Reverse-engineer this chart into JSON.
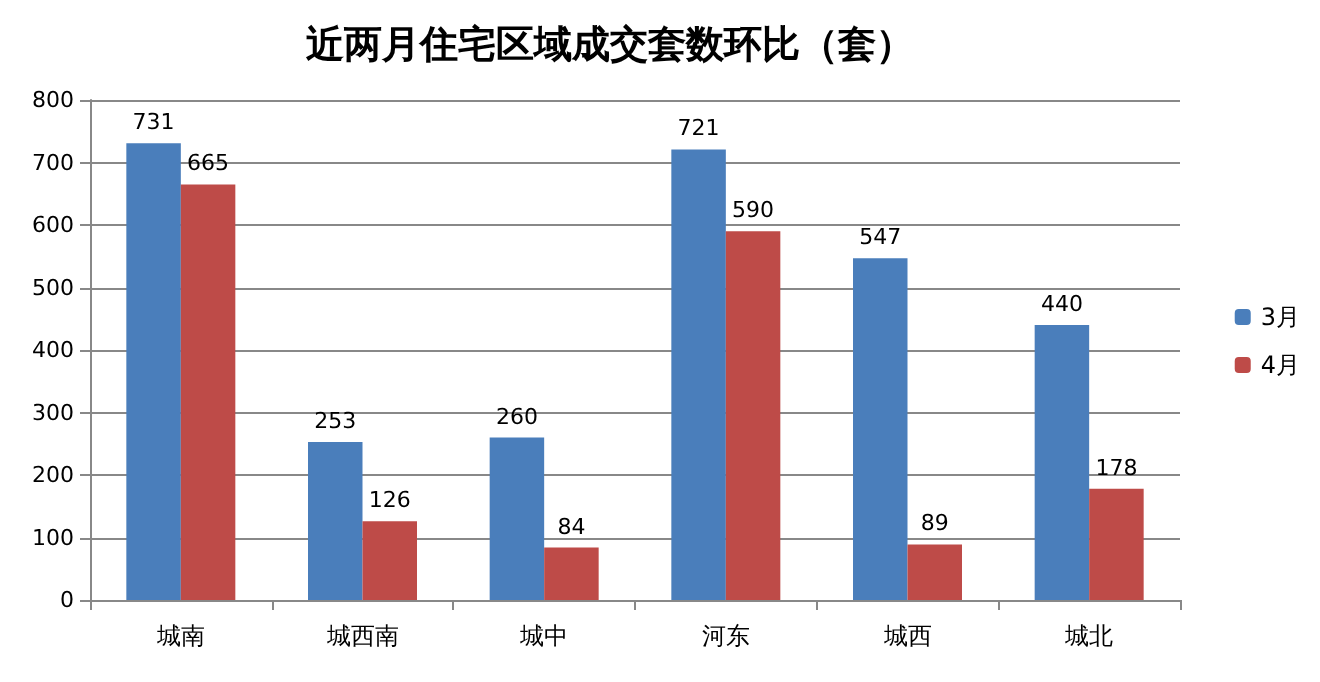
{
  "chart_data": {
    "type": "bar",
    "title": "近两月住宅区域成交套数环比（套）",
    "categories": [
      "城南",
      "城西南",
      "城中",
      "河东",
      "城西",
      "城北"
    ],
    "series": [
      {
        "name": "3月",
        "color": "#4a7ebb",
        "values": [
          731,
          253,
          260,
          721,
          547,
          440
        ]
      },
      {
        "name": "4月",
        "color": "#be4b48",
        "values": [
          665,
          126,
          84,
          590,
          89,
          178
        ]
      }
    ],
    "ylim": [
      0,
      800
    ],
    "yticks": [
      0,
      100,
      200,
      300,
      400,
      500,
      600,
      700,
      800
    ],
    "grid": "y",
    "legend": "right",
    "data_labels": true
  }
}
